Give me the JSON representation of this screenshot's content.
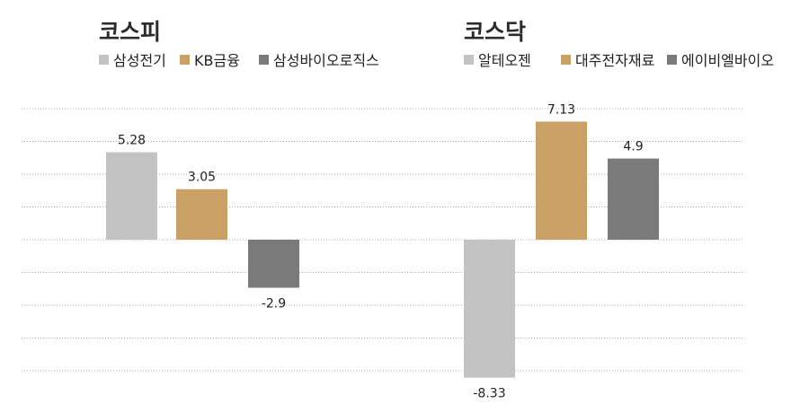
{
  "chart_data": [
    {
      "type": "bar",
      "title": "코스피",
      "categories": [
        "삼성전기",
        "KB금융",
        "삼성바이오로직스"
      ],
      "values": [
        5.28,
        3.05,
        -2.9
      ],
      "value_labels": [
        "5.28",
        "3.05",
        "-2.9"
      ],
      "colors": [
        "#c3c3c3",
        "#c9a066",
        "#7a7a7a"
      ],
      "legend_position": "top",
      "ylim": [
        -8.33,
        7.13
      ],
      "grid": true
    },
    {
      "type": "bar",
      "title": "코스닥",
      "categories": [
        "알테오젠",
        "대주전자재료",
        "에이비엘바이오"
      ],
      "values": [
        -8.33,
        7.13,
        4.9
      ],
      "value_labels": [
        "-8.33",
        "7.13",
        "4.9"
      ],
      "colors": [
        "#c3c3c3",
        "#c9a066",
        "#7a7a7a"
      ],
      "legend_position": "top",
      "ylim": [
        -8.33,
        7.13
      ],
      "grid": true
    }
  ]
}
